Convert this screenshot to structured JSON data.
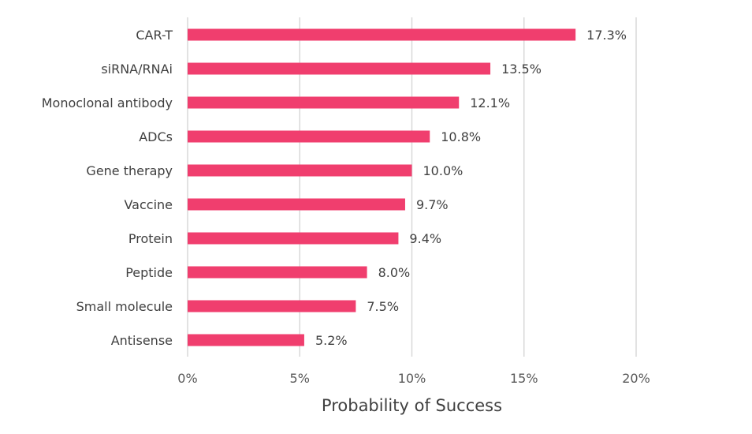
{
  "chart_data": {
    "type": "bar",
    "orientation": "horizontal",
    "categories": [
      "CAR-T",
      "siRNA/RNAi",
      "Monoclonal antibody",
      "ADCs",
      "Gene therapy",
      "Vaccine",
      "Protein",
      "Peptide",
      "Small molecule",
      "Antisense"
    ],
    "values": [
      17.3,
      13.5,
      12.1,
      10.8,
      10.0,
      9.7,
      9.4,
      8.0,
      7.5,
      5.2
    ],
    "value_labels": [
      "17.3%",
      "13.5%",
      "12.1%",
      "10.8%",
      "10.0%",
      "9.7%",
      "9.4%",
      "8.0%",
      "7.5%",
      "5.2%"
    ],
    "xlabel": "Probability of Success",
    "xlim": [
      0,
      20
    ],
    "xticks": [
      0,
      5,
      10,
      15,
      20
    ],
    "xtick_labels": [
      "0%",
      "5%",
      "10%",
      "15%",
      "20%"
    ],
    "grid": "vertical",
    "legend": "none",
    "bar_color": "#F03E6E",
    "grid_color": "#D9D9D9"
  }
}
